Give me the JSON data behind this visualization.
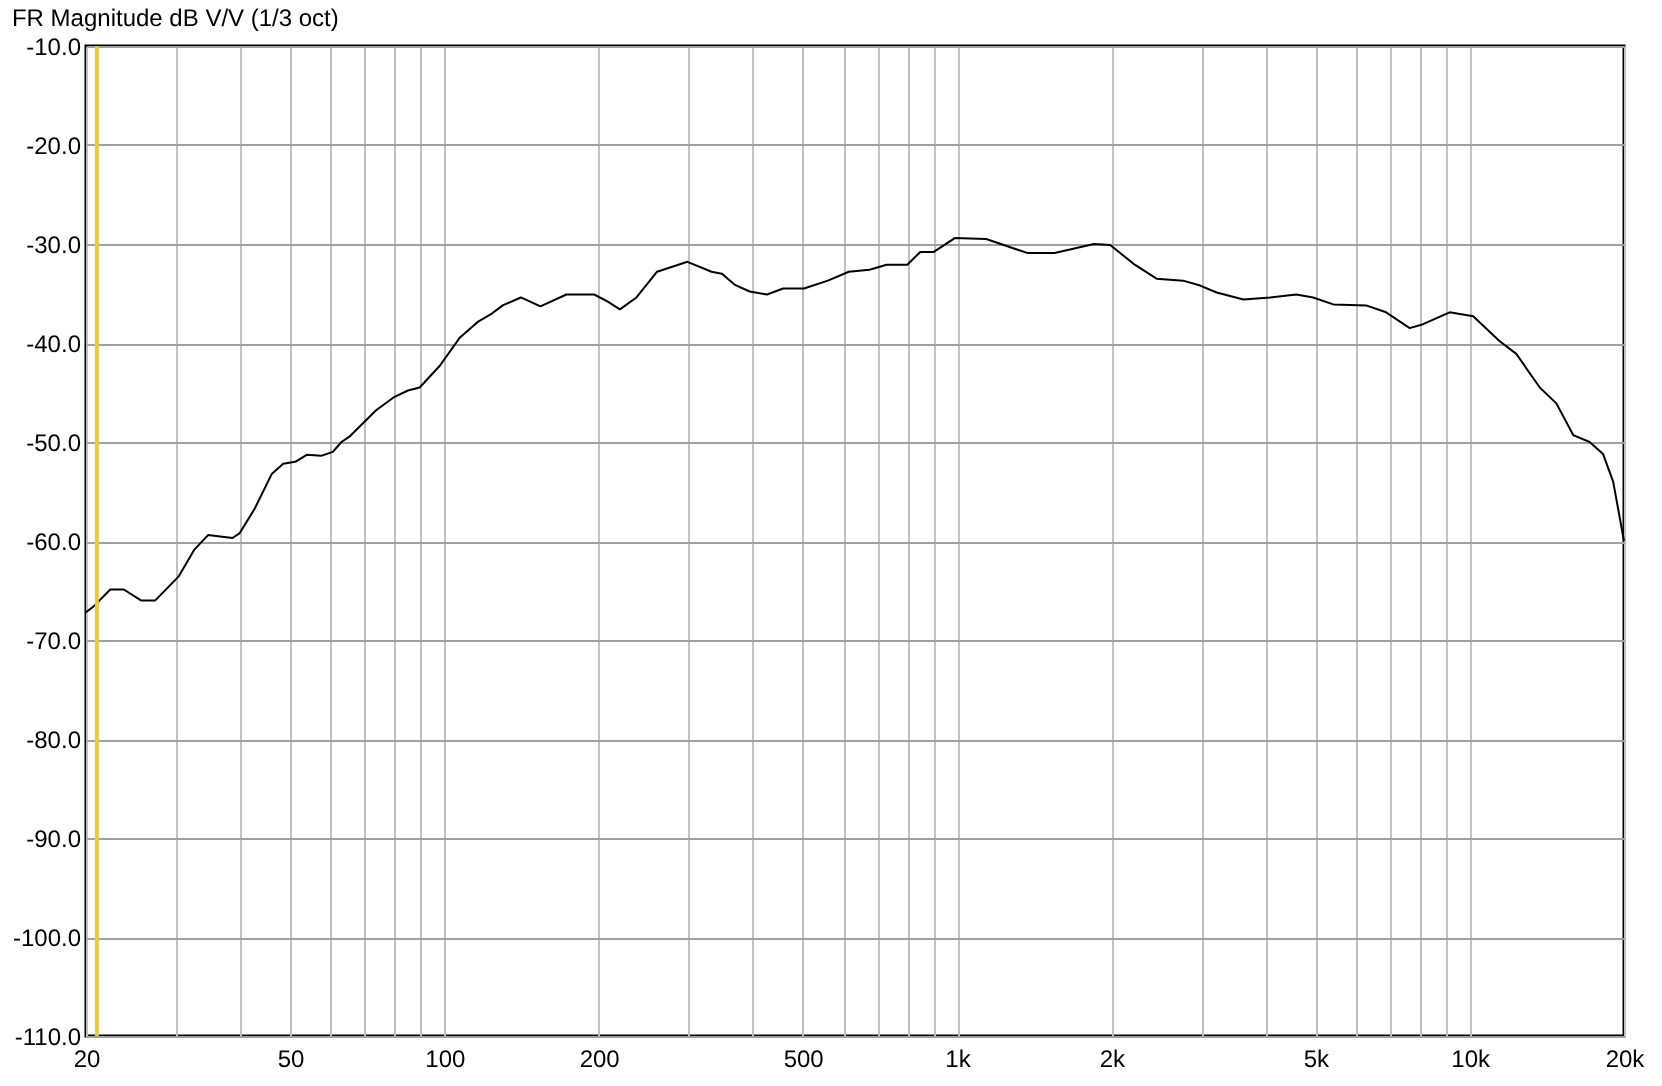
{
  "chart_data": {
    "type": "line",
    "title": "FR Magnitude dB V/V (1/3 oct)",
    "log": "x",
    "grid": true,
    "line_style": "solid",
    "marker": "none",
    "x": [
      20,
      20.7,
      22.3,
      23.7,
      25.6,
      27.3,
      30.3,
      32.5,
      34.6,
      38.6,
      39.9,
      42.6,
      46.1,
      48.5,
      51.2,
      53.9,
      57.5,
      60.6,
      63,
      65.5,
      73.6,
      79.6,
      84.9,
      89.5,
      98,
      107,
      116,
      124,
      130,
      141,
      154,
      173,
      196,
      208,
      220,
      237,
      260,
      298,
      332,
      348,
      368,
      394,
      426,
      458,
      503,
      560,
      615,
      675,
      729,
      800,
      848,
      901,
      990,
      1140,
      1370,
      1550,
      1850,
      1990,
      2210,
      2450,
      2760,
      2980,
      3210,
      3620,
      4080,
      4590,
      4950,
      5420,
      6280,
      6870,
      7640,
      8110,
      9140,
      10160,
      11430,
      12330,
      13700,
      14760,
      15920,
      17140,
      18200,
      19050,
      20000
    ],
    "series": [
      {
        "color": "#000000",
        "values": [
          -67.2,
          -66.6,
          -64.9,
          -64.9,
          -66.0,
          -66.0,
          -63.6,
          -60.9,
          -59.4,
          -59.7,
          -59.2,
          -56.8,
          -53.2,
          -52.2,
          -52.0,
          -51.3,
          -51.4,
          -51.0,
          -50.0,
          -49.4,
          -46.8,
          -45.5,
          -44.8,
          -44.5,
          -42.3,
          -39.5,
          -37.9,
          -37.0,
          -36.2,
          -35.4,
          -36.3,
          -35.1,
          -35.1,
          -35.8,
          -36.6,
          -35.4,
          -32.8,
          -31.8,
          -32.8,
          -33.0,
          -34.1,
          -34.8,
          -35.1,
          -34.5,
          -34.5,
          -33.7,
          -32.8,
          -32.6,
          -32.1,
          -32.1,
          -30.8,
          -30.8,
          -29.4,
          -29.5,
          -30.9,
          -30.9,
          -30.0,
          -30.1,
          -32.0,
          -33.5,
          -33.7,
          -34.2,
          -34.9,
          -35.6,
          -35.4,
          -35.1,
          -35.4,
          -36.1,
          -36.2,
          -36.9,
          -38.5,
          -38.1,
          -36.9,
          -37.3,
          -39.8,
          -41.1,
          -44.5,
          -46.1,
          -49.3,
          -50.0,
          -51.2,
          -54.0,
          -60.0
        ]
      }
    ],
    "xlim": [
      20,
      20000
    ],
    "xticks": [
      20,
      {
        "value": 30,
        "label": null
      },
      {
        "value": 40,
        "label": null
      },
      50,
      {
        "value": 60,
        "label": null
      },
      {
        "value": 70,
        "label": null
      },
      {
        "value": 80,
        "label": null
      },
      {
        "value": 90,
        "label": null
      },
      100,
      200,
      {
        "value": 300,
        "label": null
      },
      {
        "value": 400,
        "label": null
      },
      500,
      {
        "value": 600,
        "label": null
      },
      {
        "value": 700,
        "label": null
      },
      {
        "value": 800,
        "label": null
      },
      {
        "value": 900,
        "label": null
      },
      {
        "value": 1000,
        "label": "1k"
      },
      {
        "value": 2000,
        "label": "2k"
      },
      {
        "value": 3000,
        "label": null
      },
      {
        "value": 4000,
        "label": null
      },
      {
        "value": 5000,
        "label": "5k"
      },
      {
        "value": 6000,
        "label": null
      },
      {
        "value": 7000,
        "label": null
      },
      {
        "value": 8000,
        "label": null
      },
      {
        "value": 9000,
        "label": null
      },
      {
        "value": 10000,
        "label": "10k"
      },
      {
        "value": 20000,
        "label": "20k"
      }
    ],
    "ylim": [
      -110,
      -10
    ],
    "yticks": [
      {
        "value": -110,
        "label": "-110.0"
      },
      {
        "value": -100,
        "label": "-100.0"
      },
      {
        "value": -90,
        "label": "-90.0"
      },
      {
        "value": -80,
        "label": "-80.0"
      },
      {
        "value": -70,
        "label": "-70.0"
      },
      {
        "value": -60,
        "label": "-60.0"
      },
      {
        "value": -50,
        "label": "-50.0"
      },
      {
        "value": -40,
        "label": "-40.0"
      },
      {
        "value": -30,
        "label": "-30.0"
      },
      {
        "value": -20,
        "label": "-20.0"
      },
      {
        "value": -10,
        "label": "-10.0"
      }
    ],
    "ref_lines": [
      {
        "axis": "x",
        "value": 21,
        "color": "#e8c84a"
      }
    ]
  }
}
